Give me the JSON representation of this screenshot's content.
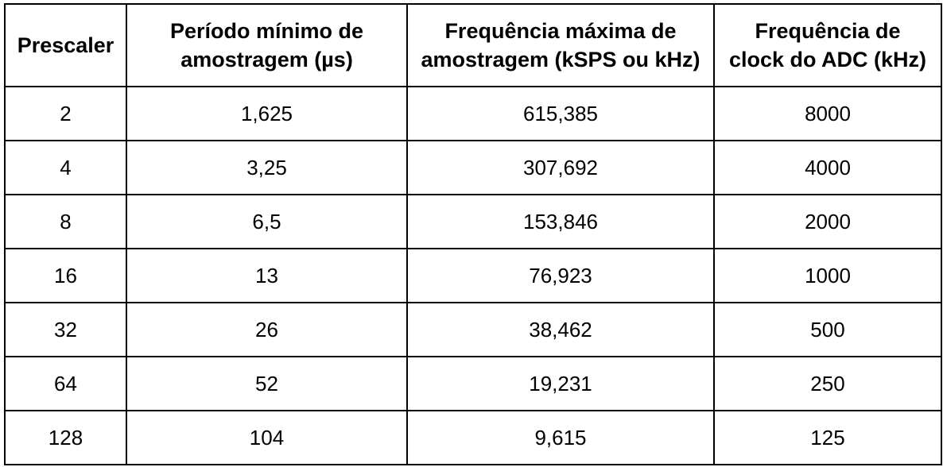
{
  "table": {
    "headers": [
      "Prescaler",
      "Período mínimo de amostragem (µs)",
      "Frequência máxima de amostragem (kSPS ou kHz)",
      "Frequência de clock do ADC (kHz)"
    ],
    "header_lines": [
      [
        "Prescaler"
      ],
      [
        "Período mínimo de",
        "amostragem (µs)"
      ],
      [
        "Frequência máxima de",
        "amostragem (kSPS ou kHz)"
      ],
      [
        "Frequência de",
        "clock do ADC (kHz)"
      ]
    ],
    "rows": [
      [
        "2",
        "1,625",
        "615,385",
        "8000"
      ],
      [
        "4",
        "3,25",
        "307,692",
        "4000"
      ],
      [
        "8",
        "6,5",
        "153,846",
        "2000"
      ],
      [
        "16",
        "13",
        "76,923",
        "1000"
      ],
      [
        "32",
        "26",
        "38,462",
        "500"
      ],
      [
        "64",
        "52",
        "19,231",
        "250"
      ],
      [
        "128",
        "104",
        "9,615",
        "125"
      ]
    ]
  }
}
